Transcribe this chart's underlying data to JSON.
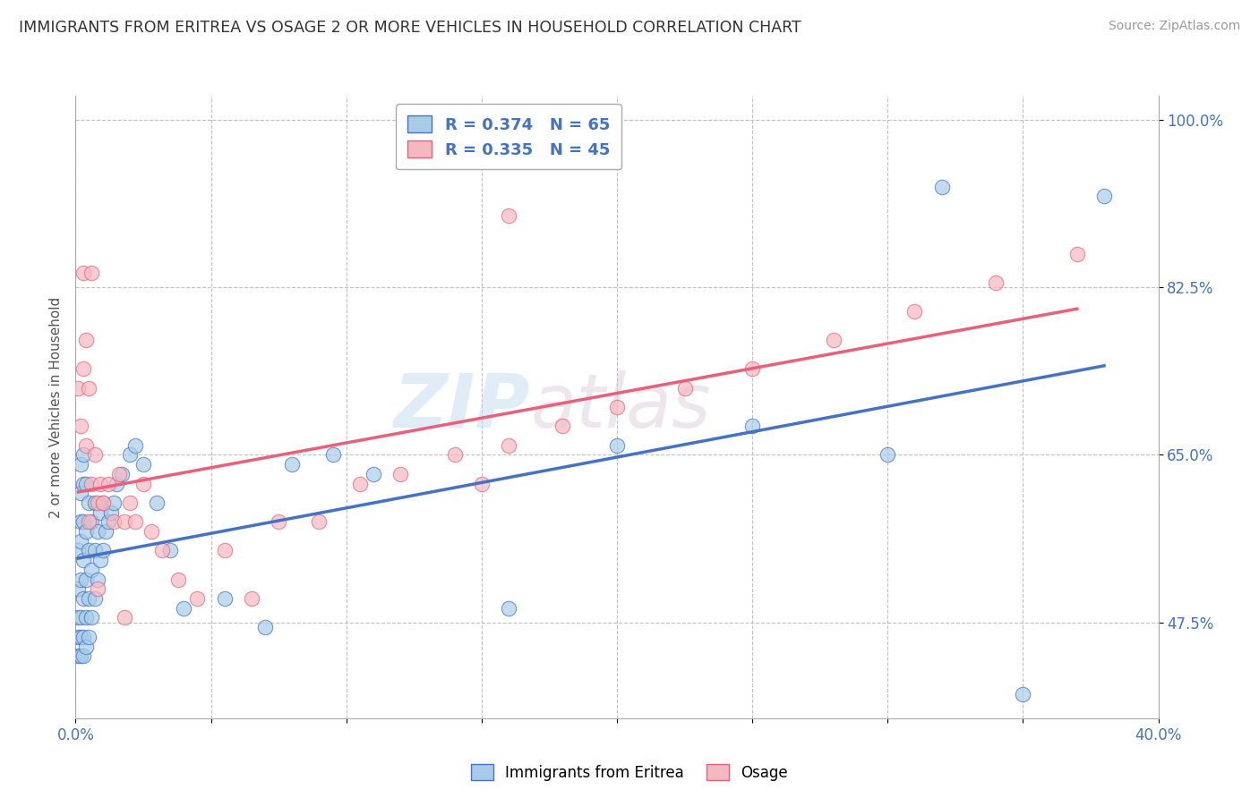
{
  "title": "IMMIGRANTS FROM ERITREA VS OSAGE 2 OR MORE VEHICLES IN HOUSEHOLD CORRELATION CHART",
  "source": "Source: ZipAtlas.com",
  "ylabel": "2 or more Vehicles in Household",
  "legend1_label": "R = 0.374   N = 65",
  "legend2_label": "R = 0.335   N = 45",
  "series1_label": "Immigrants from Eritrea",
  "series2_label": "Osage",
  "series1_color": "#a8cce8",
  "series2_color": "#f4b8c1",
  "line1_color": "#4472c4",
  "line2_color": "#e8607a",
  "watermark_zip": "ZIP",
  "watermark_atlas": "atlas",
  "x_min": 0.0,
  "x_max": 0.4,
  "y_min": 0.375,
  "y_max": 1.025,
  "y_ticks": [
    0.475,
    0.65,
    0.825,
    1.0
  ],
  "y_tick_labels": [
    "47.5%",
    "65.0%",
    "82.5%",
    "100.0%"
  ],
  "x_ticks": [
    0.0,
    0.05,
    0.1,
    0.15,
    0.2,
    0.25,
    0.3,
    0.35,
    0.4
  ],
  "series1_x": [
    0.001,
    0.001,
    0.001,
    0.001,
    0.001,
    0.002,
    0.002,
    0.002,
    0.002,
    0.002,
    0.002,
    0.002,
    0.002,
    0.003,
    0.003,
    0.003,
    0.003,
    0.003,
    0.003,
    0.003,
    0.004,
    0.004,
    0.004,
    0.004,
    0.004,
    0.005,
    0.005,
    0.005,
    0.005,
    0.006,
    0.006,
    0.006,
    0.007,
    0.007,
    0.007,
    0.008,
    0.008,
    0.009,
    0.009,
    0.01,
    0.01,
    0.011,
    0.012,
    0.013,
    0.014,
    0.015,
    0.017,
    0.02,
    0.022,
    0.025,
    0.03,
    0.035,
    0.04,
    0.055,
    0.07,
    0.08,
    0.095,
    0.11,
    0.16,
    0.2,
    0.25,
    0.3,
    0.32,
    0.35,
    0.38
  ],
  "series1_y": [
    0.44,
    0.46,
    0.48,
    0.51,
    0.55,
    0.44,
    0.46,
    0.48,
    0.52,
    0.56,
    0.58,
    0.61,
    0.64,
    0.44,
    0.46,
    0.5,
    0.54,
    0.58,
    0.62,
    0.65,
    0.45,
    0.48,
    0.52,
    0.57,
    0.62,
    0.46,
    0.5,
    0.55,
    0.6,
    0.48,
    0.53,
    0.58,
    0.5,
    0.55,
    0.6,
    0.52,
    0.57,
    0.54,
    0.59,
    0.55,
    0.6,
    0.57,
    0.58,
    0.59,
    0.6,
    0.62,
    0.63,
    0.65,
    0.66,
    0.64,
    0.6,
    0.55,
    0.49,
    0.5,
    0.47,
    0.64,
    0.65,
    0.63,
    0.49,
    0.66,
    0.68,
    0.65,
    0.93,
    0.4,
    0.92
  ],
  "series2_x": [
    0.001,
    0.002,
    0.003,
    0.003,
    0.004,
    0.005,
    0.005,
    0.006,
    0.007,
    0.008,
    0.009,
    0.01,
    0.012,
    0.014,
    0.016,
    0.018,
    0.02,
    0.022,
    0.025,
    0.028,
    0.032,
    0.038,
    0.045,
    0.055,
    0.065,
    0.075,
    0.09,
    0.105,
    0.12,
    0.14,
    0.16,
    0.18,
    0.2,
    0.225,
    0.25,
    0.28,
    0.31,
    0.34,
    0.37,
    0.004,
    0.006,
    0.008,
    0.018,
    0.16,
    0.15
  ],
  "series2_y": [
    0.72,
    0.68,
    0.74,
    0.84,
    0.66,
    0.72,
    0.58,
    0.62,
    0.65,
    0.6,
    0.62,
    0.6,
    0.62,
    0.58,
    0.63,
    0.58,
    0.6,
    0.58,
    0.62,
    0.57,
    0.55,
    0.52,
    0.5,
    0.55,
    0.5,
    0.58,
    0.58,
    0.62,
    0.63,
    0.65,
    0.66,
    0.68,
    0.7,
    0.72,
    0.74,
    0.77,
    0.8,
    0.83,
    0.86,
    0.77,
    0.84,
    0.51,
    0.48,
    0.9,
    0.62
  ]
}
